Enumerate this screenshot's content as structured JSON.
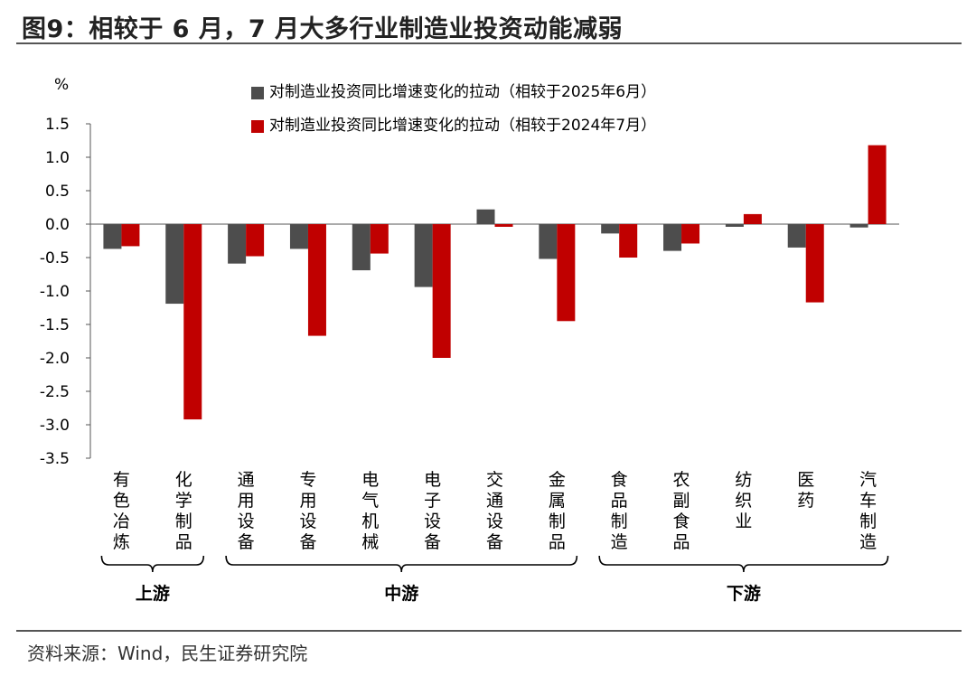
{
  "title": "图9：相较于 6 月，7 月大多行业制造业投资动能减弱",
  "source": "资料来源：Wind，民生证券研究院",
  "chart_data": {
    "type": "bar",
    "unit_label": "%",
    "categories": [
      "有色冶炼",
      "化学制品",
      "通用设备",
      "专用设备",
      "电气机械",
      "电子设备",
      "交通设备",
      "金属制品",
      "食品制造",
      "农副食品",
      "纺织业",
      "医药",
      "汽车制造"
    ],
    "series": [
      {
        "name": "对制造业投资同比增速变化的拉动（相较于2025年6月）",
        "color": "#4d4d4d",
        "values": [
          -0.37,
          -1.19,
          -0.59,
          -0.37,
          -0.69,
          -0.94,
          0.22,
          -0.52,
          -0.14,
          -0.4,
          -0.04,
          -0.35,
          -0.05
        ]
      },
      {
        "name": "对制造业投资同比增速变化的拉动（相较于2024年7月）",
        "color": "#c00000",
        "values": [
          -0.33,
          -2.92,
          -0.48,
          -1.67,
          -0.44,
          -2.0,
          -0.04,
          -1.45,
          -0.5,
          -0.29,
          0.15,
          -1.17,
          1.18
        ]
      }
    ],
    "ylim": [
      -3.5,
      1.5
    ],
    "yticks": [
      "1.5",
      "1.0",
      "0.5",
      "0.0",
      "-0.5",
      "-1.0",
      "-1.5",
      "-2.0",
      "-2.5",
      "-3.0",
      "-3.5"
    ],
    "groups": [
      {
        "label": "上游",
        "from": 0,
        "to": 1
      },
      {
        "label": "中游",
        "from": 2,
        "to": 7
      },
      {
        "label": "下游",
        "from": 8,
        "to": 12
      }
    ],
    "grid": false,
    "legend_position": "top"
  }
}
